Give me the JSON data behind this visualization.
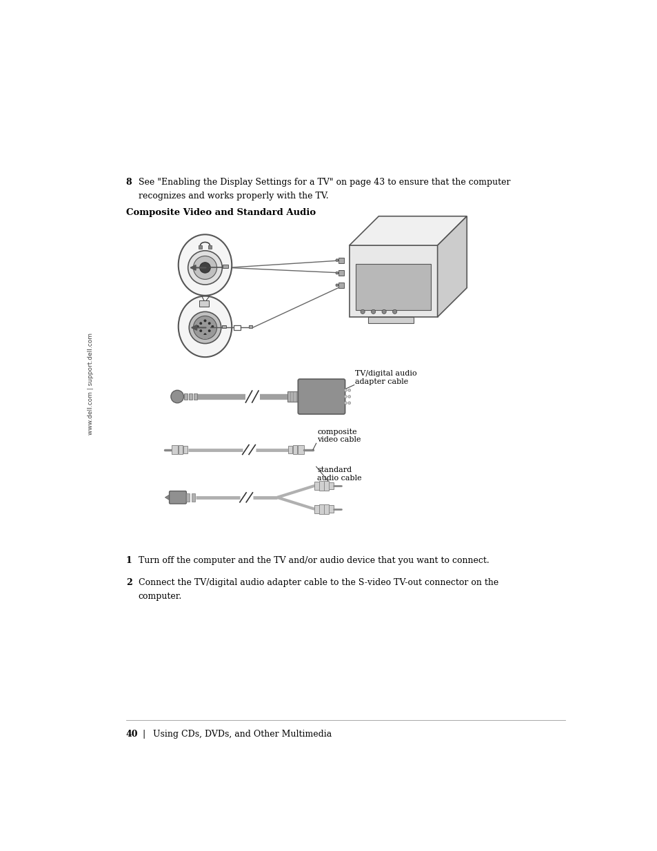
{
  "bg_color": "#ffffff",
  "page_width": 9.54,
  "page_height": 12.35,
  "side_text": "www.dell.com | support.dell.com",
  "step8_number": "8",
  "step8_text1": "See \"Enabling the Display Settings for a TV\" on page 43 to ensure that the computer",
  "step8_text2": "recognizes and works properly with the TV.",
  "section_title": "Composite Video and Standard Audio",
  "step1_number": "1",
  "step1_text": "Turn off the computer and the TV and/or audio device that you want to connect.",
  "step2_number": "2",
  "step2_text1": "Connect the TV/digital audio adapter cable to the S-video TV-out connector on the",
  "step2_text2": "computer.",
  "footer_page": "40",
  "footer_sep": "|",
  "footer_text": "Using CDs, DVDs, and Other Multimedia",
  "label_tv_audio": "TV/digital audio\nadapter cable",
  "label_composite": "composite\nvideo cable",
  "label_standard": "standard\naudio cable",
  "body_font_size": 9.0,
  "title_font_size": 9.5,
  "side_font_size": 6.5,
  "label_font_size": 8.0
}
